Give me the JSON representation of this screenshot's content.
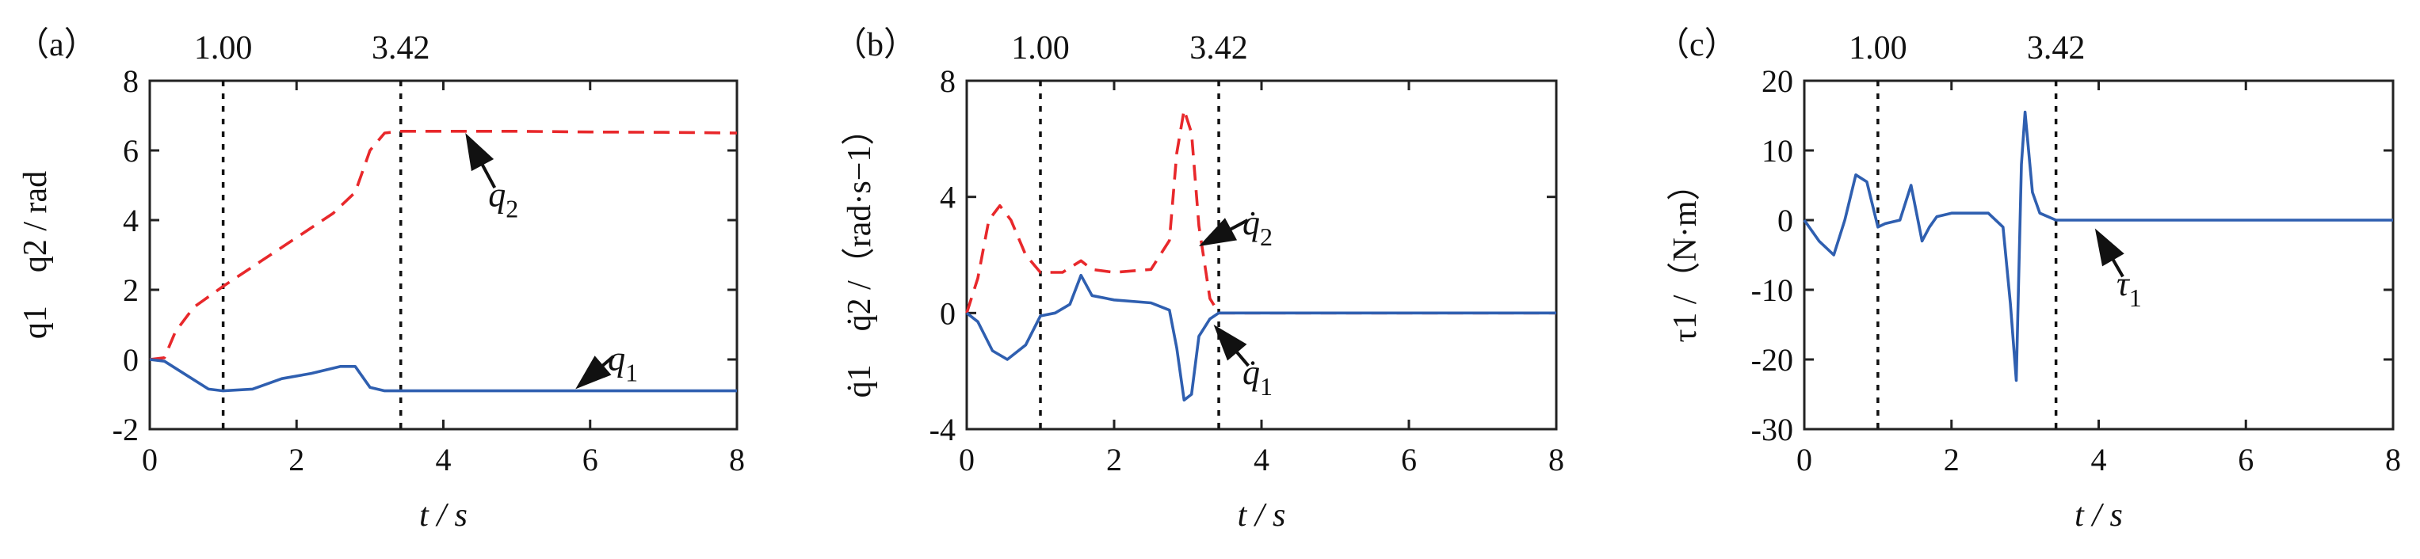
{
  "chart_data": [
    {
      "type": "line",
      "panel_label": "（a）",
      "xlabel": "t / s",
      "ylabel": "q1　q2 / rad",
      "xlim": [
        0,
        8
      ],
      "ylim": [
        -2,
        8
      ],
      "xticks": [
        0,
        2,
        4,
        6,
        8
      ],
      "yticks": [
        -2,
        0,
        2,
        4,
        6,
        8
      ],
      "vlines": [
        {
          "x": 1.0,
          "label": "1.00"
        },
        {
          "x": 3.42,
          "label": "3.42"
        }
      ],
      "series": [
        {
          "name": "q2",
          "style": "red-dashed",
          "color": "#e8282b",
          "x": [
            0,
            0.2,
            0.35,
            0.6,
            1.0,
            1.5,
            2.0,
            2.5,
            2.8,
            3.0,
            3.2,
            3.42,
            4.0,
            5.0,
            6.0,
            7.0,
            8.0
          ],
          "y": [
            0,
            0.05,
            0.8,
            1.5,
            2.1,
            2.8,
            3.5,
            4.2,
            4.8,
            6.0,
            6.5,
            6.55,
            6.55,
            6.55,
            6.53,
            6.52,
            6.5
          ]
        },
        {
          "name": "q1",
          "style": "blue-solid",
          "color": "#2f5fb0",
          "x": [
            0,
            0.2,
            0.5,
            0.8,
            1.0,
            1.4,
            1.8,
            2.2,
            2.6,
            2.8,
            3.0,
            3.2,
            3.42,
            4.0,
            5.0,
            6.0,
            7.0,
            8.0
          ],
          "y": [
            0,
            -0.05,
            -0.45,
            -0.85,
            -0.9,
            -0.85,
            -0.55,
            -0.4,
            -0.2,
            -0.2,
            -0.8,
            -0.9,
            -0.9,
            -0.9,
            -0.9,
            -0.9,
            -0.9,
            -0.9
          ]
        }
      ],
      "annotations": [
        {
          "text": "q2",
          "base": "q",
          "sub": "2",
          "x": 4.3,
          "y": 6.5
        },
        {
          "text": "q1",
          "base": "q",
          "sub": "1",
          "x": 5.8,
          "y": -0.85
        }
      ]
    },
    {
      "type": "line",
      "panel_label": "（b）",
      "xlabel": "t / s",
      "ylabel": "q̇1　q̇2 /（rad·s−1）",
      "xlim": [
        0,
        8
      ],
      "ylim": [
        -4,
        8
      ],
      "xticks": [
        0,
        2,
        4,
        6,
        8
      ],
      "yticks": [
        -4,
        0,
        4,
        8
      ],
      "vlines": [
        {
          "x": 1.0,
          "label": "1.00"
        },
        {
          "x": 3.42,
          "label": "3.42"
        }
      ],
      "series": [
        {
          "name": "q̇2",
          "style": "red-dashed",
          "color": "#e8282b",
          "x": [
            0,
            0.15,
            0.3,
            0.45,
            0.6,
            0.8,
            1.0,
            1.3,
            1.55,
            1.7,
            2.0,
            2.5,
            2.75,
            2.85,
            2.95,
            3.05,
            3.15,
            3.3,
            3.42,
            4.0,
            6.0,
            8.0
          ],
          "y": [
            0,
            1.2,
            3.2,
            3.7,
            3.2,
            2.0,
            1.4,
            1.4,
            1.8,
            1.5,
            1.4,
            1.5,
            2.5,
            5.5,
            7.0,
            6.2,
            3.0,
            0.5,
            0.0,
            0.0,
            0.0,
            0.0
          ]
        },
        {
          "name": "q̇1",
          "style": "blue-solid",
          "color": "#2f5fb0",
          "x": [
            0,
            0.15,
            0.35,
            0.55,
            0.8,
            1.0,
            1.2,
            1.4,
            1.55,
            1.7,
            2.0,
            2.5,
            2.75,
            2.85,
            2.95,
            3.05,
            3.15,
            3.3,
            3.42,
            4.0,
            6.0,
            8.0
          ],
          "y": [
            0,
            -0.3,
            -1.3,
            -1.6,
            -1.1,
            -0.1,
            0.0,
            0.3,
            1.3,
            0.6,
            0.45,
            0.35,
            0.1,
            -1.2,
            -3.0,
            -2.8,
            -0.8,
            -0.2,
            0.0,
            0.0,
            0.0,
            0.0
          ]
        }
      ],
      "annotations": [
        {
          "text": "q̇2",
          "base": "q̇",
          "sub": "2",
          "x": 3.8,
          "y": 3.2
        },
        {
          "text": "q̇1",
          "base": "q̇",
          "sub": "1",
          "x": 3.65,
          "y": -2.3
        }
      ]
    },
    {
      "type": "line",
      "panel_label": "（c）",
      "xlabel": "t / s",
      "ylabel": "τ1 /（N·m）",
      "xlim": [
        0,
        8
      ],
      "ylim": [
        -30,
        20
      ],
      "xticks": [
        0,
        2,
        4,
        6,
        8
      ],
      "yticks": [
        -30,
        -20,
        -10,
        0,
        10,
        20
      ],
      "vlines": [
        {
          "x": 1.0,
          "label": "1.00"
        },
        {
          "x": 3.42,
          "label": "3.42"
        }
      ],
      "series": [
        {
          "name": "τ1",
          "style": "blue-solid",
          "color": "#2f5fb0",
          "x": [
            0,
            0.2,
            0.4,
            0.55,
            0.7,
            0.85,
            1.0,
            1.1,
            1.3,
            1.45,
            1.6,
            1.7,
            1.8,
            2.0,
            2.5,
            2.7,
            2.8,
            2.88,
            2.95,
            3.0,
            3.1,
            3.2,
            3.42,
            4.0,
            6.0,
            8.0
          ],
          "y": [
            0,
            -3,
            -5,
            0,
            6.5,
            5.5,
            -1,
            -0.5,
            0,
            5,
            -3,
            -1,
            0.5,
            1,
            1,
            -1,
            -12,
            -23,
            8,
            15.5,
            4,
            1,
            0,
            0,
            0,
            0
          ]
        }
      ],
      "annotations": [
        {
          "text": "τ1",
          "base": "τ",
          "sub": "1",
          "x": 4.0,
          "y": -7.5
        }
      ]
    }
  ]
}
